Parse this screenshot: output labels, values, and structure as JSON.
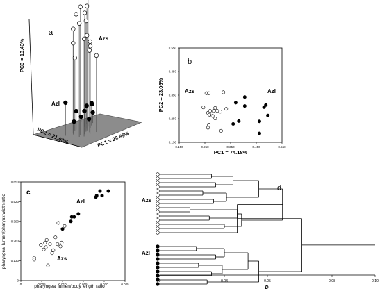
{
  "colors": {
    "filled": "#000000",
    "open": "#ffffff",
    "axis": "#000000",
    "plane": "#8c8c8c",
    "plane_edge": "#5a5a5a",
    "stem": "#555555"
  },
  "chart_data": [
    {
      "type": "scatter",
      "panel_label": "a",
      "projection": "3d",
      "xlabel": "PC1 = 29.89%",
      "ylabel": "PC2 = 21.03%",
      "zlabel": "PC3 = 13.43%",
      "group_labels": [
        {
          "text": "Azs",
          "group": "Azs"
        },
        {
          "text": "Azl",
          "group": "Azl"
        }
      ],
      "series": [
        {
          "name": "Azs",
          "marker": "open",
          "points": [
            {
              "x": 0.24,
              "y": 0.35,
              "z": 0.86
            },
            {
              "x": 0.3,
              "y": 0.4,
              "z": 0.97
            },
            {
              "x": 0.34,
              "y": 0.36,
              "z": 0.92
            },
            {
              "x": 0.35,
              "y": 0.55,
              "z": 0.89
            },
            {
              "x": 0.26,
              "y": 0.5,
              "z": 0.8
            },
            {
              "x": 0.41,
              "y": 0.42,
              "z": 0.84
            },
            {
              "x": 0.45,
              "y": 0.45,
              "z": 0.72
            },
            {
              "x": 0.49,
              "y": 0.5,
              "z": 0.93
            },
            {
              "x": 0.55,
              "y": 0.55,
              "z": 0.99
            },
            {
              "x": 0.53,
              "y": 0.48,
              "z": 0.62
            },
            {
              "x": 0.38,
              "y": 0.3,
              "z": 0.7
            },
            {
              "x": 0.42,
              "y": 0.36,
              "z": 0.62
            },
            {
              "x": 0.47,
              "y": 0.28,
              "z": 0.58
            },
            {
              "x": 0.28,
              "y": 0.3,
              "z": 0.74
            },
            {
              "x": 0.3,
              "y": 0.55,
              "z": 0.68
            },
            {
              "x": 0.37,
              "y": 0.6,
              "z": 0.55
            }
          ]
        },
        {
          "name": "Azl",
          "marker": "filled",
          "points": [
            {
              "x": 0.18,
              "y": 0.56,
              "z": 0.25
            },
            {
              "x": 0.4,
              "y": 0.61,
              "z": 0.14
            },
            {
              "x": 0.42,
              "y": 0.68,
              "z": 0.05
            },
            {
              "x": 0.6,
              "y": 0.64,
              "z": 0.14
            },
            {
              "x": 0.68,
              "y": 0.69,
              "z": 0.02
            },
            {
              "x": 0.67,
              "y": 0.6,
              "z": 0.08
            },
            {
              "x": 0.74,
              "y": 0.7,
              "z": 0.12
            },
            {
              "x": 0.62,
              "y": 0.78,
              "z": 0.04
            },
            {
              "x": 0.6,
              "y": 0.54,
              "z": 0.17
            },
            {
              "x": 0.52,
              "y": 0.59,
              "z": 0.12
            }
          ]
        }
      ]
    },
    {
      "type": "scatter",
      "panel_label": "b",
      "xlabel": "PC1 = 74.18%",
      "ylabel": "PC2 = 23.06%",
      "xlim": [
        0.15,
        0.55
      ],
      "ylim": [
        0.15,
        0.55
      ],
      "xticks": [
        "0.150",
        "0.250",
        "0.350",
        "0.450",
        "0.550"
      ],
      "yticks": [
        "0.150",
        "0.250",
        "0.350",
        "0.450",
        "0.550"
      ],
      "group_labels": [
        {
          "text": "Azs",
          "group": "Azs"
        },
        {
          "text": "Azl",
          "group": "Azl"
        }
      ],
      "series": [
        {
          "name": "Azs",
          "marker": "open",
          "points": [
            {
              "x": 0.256,
              "y": 0.358
            },
            {
              "x": 0.265,
              "y": 0.358
            },
            {
              "x": 0.322,
              "y": 0.362
            },
            {
              "x": 0.244,
              "y": 0.298
            },
            {
              "x": 0.262,
              "y": 0.275
            },
            {
              "x": 0.27,
              "y": 0.283
            },
            {
              "x": 0.283,
              "y": 0.283
            },
            {
              "x": 0.29,
              "y": 0.296
            },
            {
              "x": 0.298,
              "y": 0.283
            },
            {
              "x": 0.31,
              "y": 0.28
            },
            {
              "x": 0.333,
              "y": 0.292
            },
            {
              "x": 0.268,
              "y": 0.267
            },
            {
              "x": 0.28,
              "y": 0.262
            },
            {
              "x": 0.29,
              "y": 0.251
            },
            {
              "x": 0.265,
              "y": 0.225
            },
            {
              "x": 0.262,
              "y": 0.212
            },
            {
              "x": 0.313,
              "y": 0.199
            }
          ]
        },
        {
          "name": "Azl",
          "marker": "filled",
          "points": [
            {
              "x": 0.405,
              "y": 0.342
            },
            {
              "x": 0.37,
              "y": 0.318
            },
            {
              "x": 0.405,
              "y": 0.304
            },
            {
              "x": 0.487,
              "y": 0.308
            },
            {
              "x": 0.48,
              "y": 0.299
            },
            {
              "x": 0.495,
              "y": 0.264
            },
            {
              "x": 0.462,
              "y": 0.239
            },
            {
              "x": 0.382,
              "y": 0.24
            },
            {
              "x": 0.36,
              "y": 0.228
            },
            {
              "x": 0.462,
              "y": 0.188
            }
          ]
        }
      ]
    },
    {
      "type": "scatter",
      "panel_label": "c",
      "xlabel": "pharyngeal lumen/body length ratio",
      "ylabel": "pharyngeal lumen/pharynx width ratio",
      "xlim": [
        0,
        0.025
      ],
      "ylim": [
        0,
        0.65
      ],
      "xticks": [
        "0",
        "0.005",
        "0.010",
        "0.015",
        "0.020",
        "0.025"
      ],
      "yticks": [
        "0",
        "0.130",
        "0.260",
        "0.390",
        "0.520",
        "0.650"
      ],
      "group_labels": [
        {
          "text": "Azl",
          "group": "Azl"
        },
        {
          "text": "Azs",
          "group": "Azs"
        }
      ],
      "series": [
        {
          "name": "Azs",
          "marker": "open",
          "points": [
            {
              "x": 0.0032,
              "y": 0.15
            },
            {
              "x": 0.0032,
              "y": 0.138
            },
            {
              "x": 0.0048,
              "y": 0.235
            },
            {
              "x": 0.0055,
              "y": 0.205
            },
            {
              "x": 0.0058,
              "y": 0.25
            },
            {
              "x": 0.006,
              "y": 0.22
            },
            {
              "x": 0.0062,
              "y": 0.268
            },
            {
              "x": 0.0065,
              "y": 0.1
            },
            {
              "x": 0.007,
              "y": 0.24
            },
            {
              "x": 0.0075,
              "y": 0.18
            },
            {
              "x": 0.0078,
              "y": 0.2
            },
            {
              "x": 0.0083,
              "y": 0.285
            },
            {
              "x": 0.0088,
              "y": 0.24
            },
            {
              "x": 0.009,
              "y": 0.38
            },
            {
              "x": 0.0095,
              "y": 0.225
            },
            {
              "x": 0.0098,
              "y": 0.25
            },
            {
              "x": 0.0105,
              "y": 0.36
            }
          ]
        },
        {
          "name": "Azl",
          "marker": "filled",
          "points": [
            {
              "x": 0.01,
              "y": 0.34
            },
            {
              "x": 0.012,
              "y": 0.39
            },
            {
              "x": 0.0122,
              "y": 0.42
            },
            {
              "x": 0.0128,
              "y": 0.42
            },
            {
              "x": 0.0138,
              "y": 0.44
            },
            {
              "x": 0.018,
              "y": 0.55
            },
            {
              "x": 0.0182,
              "y": 0.56
            },
            {
              "x": 0.019,
              "y": 0.59
            },
            {
              "x": 0.0195,
              "y": 0.56
            },
            {
              "x": 0.021,
              "y": 0.59
            }
          ]
        }
      ]
    },
    {
      "type": "dendrogram",
      "panel_label": "d",
      "xlabel": "D",
      "xlim": [
        0,
        0.1
      ],
      "xticks": [
        "0",
        "0.03",
        "0.05",
        "0.08",
        "0.10"
      ],
      "group_labels": [
        {
          "text": "Azs",
          "group": "Azs"
        },
        {
          "text": "Azl",
          "group": "Azl"
        }
      ],
      "leaves": [
        {
          "group": "Azs",
          "marker": "open"
        },
        {
          "group": "Azs",
          "marker": "open"
        },
        {
          "group": "Azs",
          "marker": "open"
        },
        {
          "group": "Azs",
          "marker": "open"
        },
        {
          "group": "Azs",
          "marker": "open"
        },
        {
          "group": "Azs",
          "marker": "open"
        },
        {
          "group": "Azs",
          "marker": "open"
        },
        {
          "group": "Azs",
          "marker": "open"
        },
        {
          "group": "Azs",
          "marker": "open"
        },
        {
          "group": "Azs",
          "marker": "open"
        },
        {
          "group": "Azs",
          "marker": "open"
        },
        {
          "group": "Azs",
          "marker": "open"
        },
        {
          "group": "Azs",
          "marker": "open"
        },
        {
          "group": "Azs",
          "marker": "open"
        },
        {
          "group": "Azs",
          "marker": "open"
        },
        {
          "group": "Azl",
          "marker": "filled"
        },
        {
          "group": "Azl",
          "marker": "filled"
        },
        {
          "group": "Azl",
          "marker": "filled"
        },
        {
          "group": "Azl",
          "marker": "filled"
        },
        {
          "group": "Azl",
          "marker": "filled"
        },
        {
          "group": "Azl",
          "marker": "filled"
        },
        {
          "group": "Azl",
          "marker": "filled"
        },
        {
          "group": "Azl",
          "marker": "filled"
        },
        {
          "group": "Azl",
          "marker": "filled"
        },
        {
          "group": "Azl",
          "marker": "filled"
        }
      ],
      "merges": [
        {
          "a": "L0",
          "b": "L1",
          "height": 0.024
        },
        {
          "a": "L2",
          "b": "L3",
          "height": 0.026
        },
        {
          "a": "L4",
          "b": "L5",
          "height": 0.02
        },
        {
          "a": "L6",
          "b": "L7",
          "height": 0.025
        },
        {
          "a": "L8",
          "b": "L9",
          "height": 0.014
        },
        {
          "a": "L10",
          "b": "L11",
          "height": 0.023
        },
        {
          "a": "L12",
          "b": "L13",
          "height": 0.03
        },
        {
          "a": "N0",
          "b": "N1",
          "height": 0.034
        },
        {
          "a": "N2",
          "b": "N3",
          "height": 0.031
        },
        {
          "a": "N4",
          "b": "N5",
          "height": 0.036
        },
        {
          "a": "N7",
          "b": "N8",
          "height": 0.046
        },
        {
          "a": "N9",
          "b": "N6",
          "height": 0.038
        },
        {
          "a": "N10",
          "b": "N11",
          "height": 0.057
        },
        {
          "a": "N12",
          "b": "L14",
          "height": 0.036
        },
        {
          "a": "L15",
          "b": "L16",
          "height": 0.017
        },
        {
          "a": "L17",
          "b": "L18",
          "height": 0.026
        },
        {
          "a": "L19",
          "b": "L20",
          "height": 0.018
        },
        {
          "a": "L21",
          "b": "L22",
          "height": 0.024
        },
        {
          "a": "L23",
          "b": "L24",
          "height": 0.022
        },
        {
          "a": "N14",
          "b": "N15",
          "height": 0.03
        },
        {
          "a": "N16",
          "b": "N17",
          "height": 0.029
        },
        {
          "a": "N19",
          "b": "N20",
          "height": 0.041
        },
        {
          "a": "N21",
          "b": "N18",
          "height": 0.046
        },
        {
          "a": "N13",
          "b": "N22",
          "height": 0.066
        }
      ],
      "root_extends_to": 0.1
    }
  ]
}
